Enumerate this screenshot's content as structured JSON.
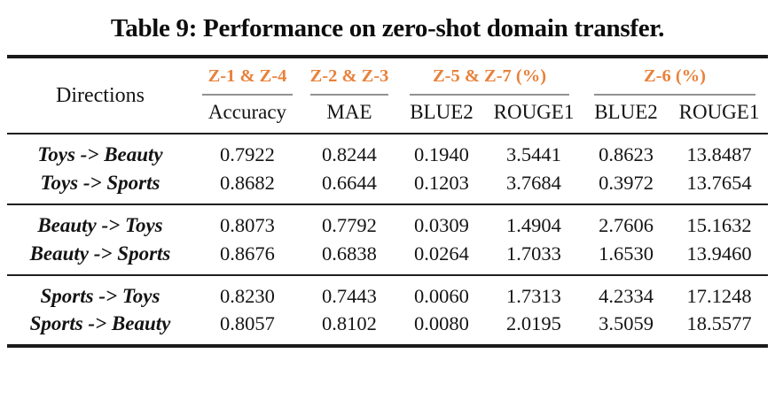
{
  "title": "Table 9: Performance on zero-shot domain transfer.",
  "table": {
    "directions_header": "Directions",
    "groups": [
      {
        "label": "Z-1 & Z-4",
        "subcolumns": [
          "Accuracy"
        ]
      },
      {
        "label": "Z-2 & Z-3",
        "subcolumns": [
          "MAE"
        ]
      },
      {
        "label": "Z-5 & Z-7 (%)",
        "subcolumns": [
          "BLUE2",
          "ROUGE1"
        ]
      },
      {
        "label": "Z-6 (%)",
        "subcolumns": [
          "BLUE2",
          "ROUGE1"
        ]
      }
    ],
    "row_groups": [
      {
        "rows": [
          {
            "direction": "Toys -> Beauty",
            "values": [
              "0.7922",
              "0.8244",
              "0.1940",
              "3.5441",
              "0.8623",
              "13.8487"
            ]
          },
          {
            "direction": "Toys -> Sports",
            "values": [
              "0.8682",
              "0.6644",
              "0.1203",
              "3.7684",
              "0.3972",
              "13.7654"
            ]
          }
        ]
      },
      {
        "rows": [
          {
            "direction": "Beauty -> Toys",
            "values": [
              "0.8073",
              "0.7792",
              "0.0309",
              "1.4904",
              "2.7606",
              "15.1632"
            ]
          },
          {
            "direction": "Beauty -> Sports",
            "values": [
              "0.8676",
              "0.6838",
              "0.0264",
              "1.7033",
              "1.6530",
              "13.9460"
            ]
          }
        ]
      },
      {
        "rows": [
          {
            "direction": "Sports -> Toys",
            "values": [
              "0.8230",
              "0.7443",
              "0.0060",
              "1.7313",
              "4.2334",
              "17.1248"
            ]
          },
          {
            "direction": "Sports -> Beauty",
            "values": [
              "0.8057",
              "0.8102",
              "0.0080",
              "2.0195",
              "3.5059",
              "18.5577"
            ]
          }
        ]
      }
    ]
  },
  "colors": {
    "accent_orange": "#E8823C",
    "rule_black": "#1A1A1A",
    "cmidrule_gray": "#919191"
  }
}
